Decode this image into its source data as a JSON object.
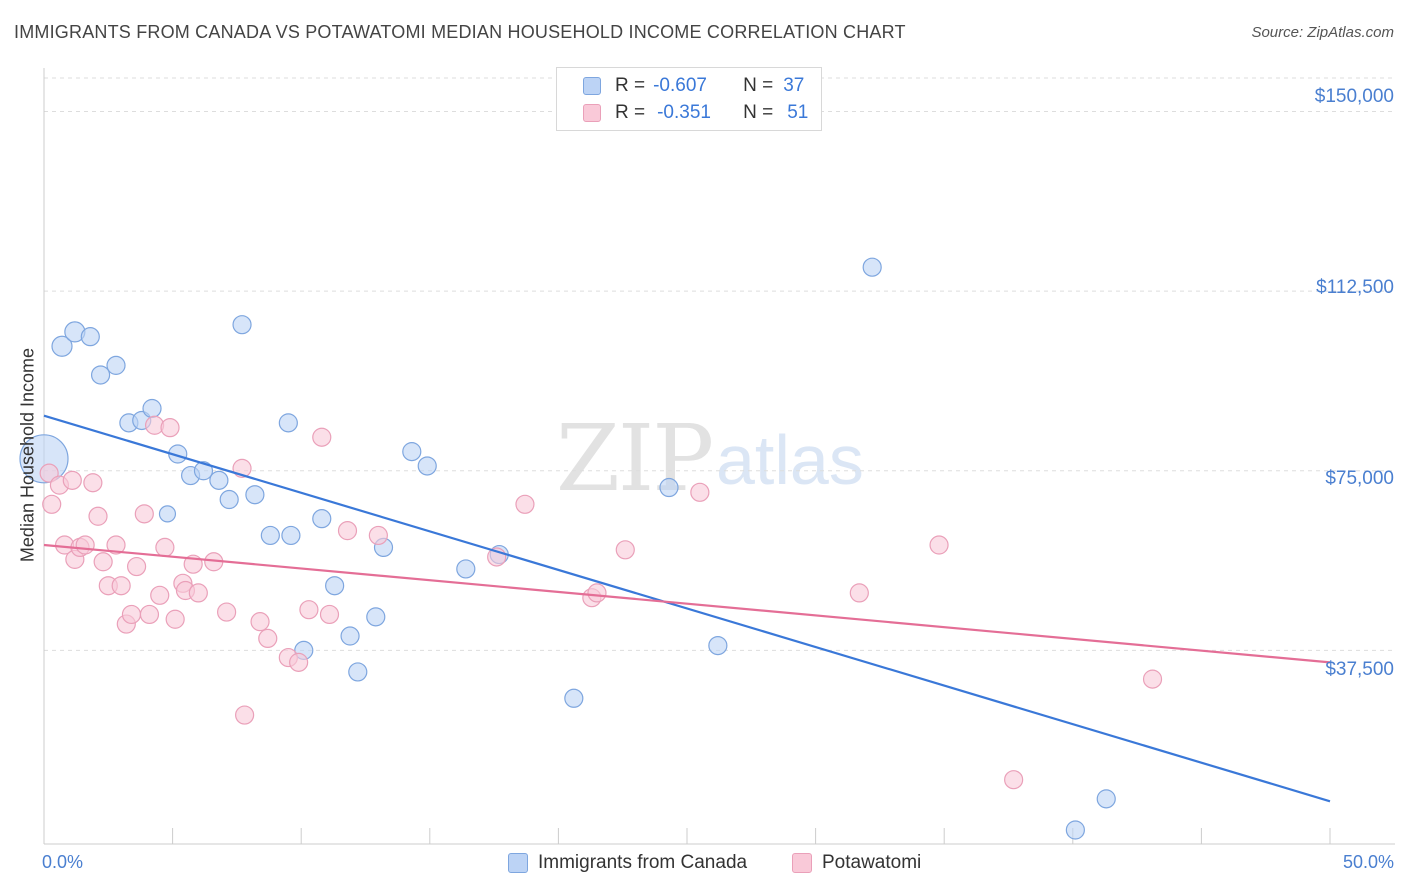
{
  "header": {
    "title": "IMMIGRANTS FROM CANADA VS POTAWATOMI MEDIAN HOUSEHOLD INCOME CORRELATION CHART",
    "source": "Source: ZipAtlas.com"
  },
  "watermark": {
    "zip": "ZIP",
    "atlas": "atlas"
  },
  "legend": {
    "rows": [
      {
        "r_label": "R =",
        "r_value": "-0.607",
        "n_label": "N =",
        "n_value": "37"
      },
      {
        "r_label": "R =",
        "r_value": "-0.351",
        "n_label": "N =",
        "n_value": "51"
      }
    ]
  },
  "bottom_legend": {
    "series1": "Immigrants from Canada",
    "series2": "Potawatomi"
  },
  "colors": {
    "blue_fill": "#bcd3f5",
    "blue_stroke": "#7ea6df",
    "blue_line": "#3a78d8",
    "pink_fill": "#f9c9d8",
    "pink_stroke": "#eaa0b9",
    "pink_line": "#e46e96",
    "axis_text": "#4a7fd0"
  },
  "chart_data": {
    "type": "scatter",
    "title": "IMMIGRANTS FROM CANADA VS POTAWATOMI MEDIAN HOUSEHOLD INCOME CORRELATION CHART",
    "xlabel": "",
    "ylabel": "Median Household Income",
    "xlim": [
      0,
      50
    ],
    "ylim": [
      0,
      157000
    ],
    "x_tick_labels": [
      "0.0%",
      "50.0%"
    ],
    "y_ticks": [
      37500,
      75000,
      112500,
      150000
    ],
    "y_tick_labels": [
      "$37,500",
      "$75,000",
      "$112,500",
      "$150,000"
    ],
    "grid": "horizontal dashed",
    "legend_position": "top-center",
    "series": [
      {
        "name": "Immigrants from Canada",
        "color": "#3a78d8",
        "trend": {
          "x": [
            0,
            50
          ],
          "y": [
            86500,
            6000
          ]
        },
        "points": [
          [
            0.0,
            77500,
            24
          ],
          [
            0.7,
            101000,
            10
          ],
          [
            1.2,
            104000,
            10
          ],
          [
            1.8,
            103000,
            9
          ],
          [
            2.2,
            95000,
            9
          ],
          [
            2.8,
            97000,
            9
          ],
          [
            3.3,
            85000,
            9
          ],
          [
            3.8,
            85500,
            9
          ],
          [
            4.2,
            88000,
            9
          ],
          [
            4.8,
            66000,
            8
          ],
          [
            5.2,
            78500,
            9
          ],
          [
            5.7,
            74000,
            9
          ],
          [
            6.2,
            75000,
            9
          ],
          [
            6.8,
            73000,
            9
          ],
          [
            7.2,
            69000,
            9
          ],
          [
            7.7,
            105500,
            9
          ],
          [
            8.2,
            70000,
            9
          ],
          [
            8.8,
            61500,
            9
          ],
          [
            9.5,
            85000,
            9
          ],
          [
            9.6,
            61500,
            9
          ],
          [
            10.1,
            37500,
            9
          ],
          [
            10.8,
            65000,
            9
          ],
          [
            11.3,
            51000,
            9
          ],
          [
            11.9,
            40500,
            9
          ],
          [
            12.2,
            33000,
            9
          ],
          [
            12.9,
            44500,
            9
          ],
          [
            13.2,
            59000,
            9
          ],
          [
            14.3,
            79000,
            9
          ],
          [
            14.9,
            76000,
            9
          ],
          [
            16.4,
            54500,
            9
          ],
          [
            17.7,
            57500,
            9
          ],
          [
            20.6,
            27500,
            9
          ],
          [
            24.3,
            71500,
            9
          ],
          [
            26.2,
            38500,
            9
          ],
          [
            32.2,
            117500,
            9
          ],
          [
            40.1,
            0,
            9
          ],
          [
            41.3,
            6500,
            9
          ]
        ]
      },
      {
        "name": "Potawatomi",
        "color": "#e46e96",
        "trend": {
          "x": [
            0,
            50
          ],
          "y": [
            59500,
            35000
          ]
        },
        "points": [
          [
            0.2,
            74500,
            9
          ],
          [
            0.3,
            68000,
            9
          ],
          [
            0.6,
            72000,
            9
          ],
          [
            0.8,
            59500,
            9
          ],
          [
            1.1,
            73000,
            9
          ],
          [
            1.2,
            56500,
            9
          ],
          [
            1.4,
            59000,
            9
          ],
          [
            1.6,
            59500,
            9
          ],
          [
            1.9,
            72500,
            9
          ],
          [
            2.1,
            65500,
            9
          ],
          [
            2.3,
            56000,
            9
          ],
          [
            2.5,
            51000,
            9
          ],
          [
            2.8,
            59500,
            9
          ],
          [
            3.0,
            51000,
            9
          ],
          [
            3.2,
            43000,
            9
          ],
          [
            3.4,
            45000,
            9
          ],
          [
            3.6,
            55000,
            9
          ],
          [
            3.9,
            66000,
            9
          ],
          [
            4.1,
            45000,
            9
          ],
          [
            4.3,
            84500,
            9
          ],
          [
            4.5,
            49000,
            9
          ],
          [
            4.7,
            59000,
            9
          ],
          [
            4.9,
            84000,
            9
          ],
          [
            5.1,
            44000,
            9
          ],
          [
            5.4,
            51500,
            9
          ],
          [
            5.5,
            50000,
            9
          ],
          [
            5.8,
            55500,
            9
          ],
          [
            6.0,
            49500,
            9
          ],
          [
            6.6,
            56000,
            9
          ],
          [
            7.1,
            45500,
            9
          ],
          [
            7.7,
            75500,
            9
          ],
          [
            7.8,
            24000,
            9
          ],
          [
            8.4,
            43500,
            9
          ],
          [
            8.7,
            40000,
            9
          ],
          [
            9.5,
            36000,
            9
          ],
          [
            9.9,
            35000,
            9
          ],
          [
            10.3,
            46000,
            9
          ],
          [
            10.8,
            82000,
            9
          ],
          [
            11.1,
            45000,
            9
          ],
          [
            11.8,
            62500,
            9
          ],
          [
            13.0,
            61500,
            9
          ],
          [
            17.6,
            57000,
            9
          ],
          [
            18.7,
            68000,
            9
          ],
          [
            21.3,
            48500,
            9
          ],
          [
            21.5,
            49500,
            9
          ],
          [
            22.6,
            58500,
            9
          ],
          [
            25.5,
            70500,
            9
          ],
          [
            31.7,
            49500,
            9
          ],
          [
            34.8,
            59500,
            9
          ],
          [
            37.7,
            10500,
            9
          ],
          [
            43.1,
            31500,
            9
          ]
        ]
      }
    ]
  }
}
